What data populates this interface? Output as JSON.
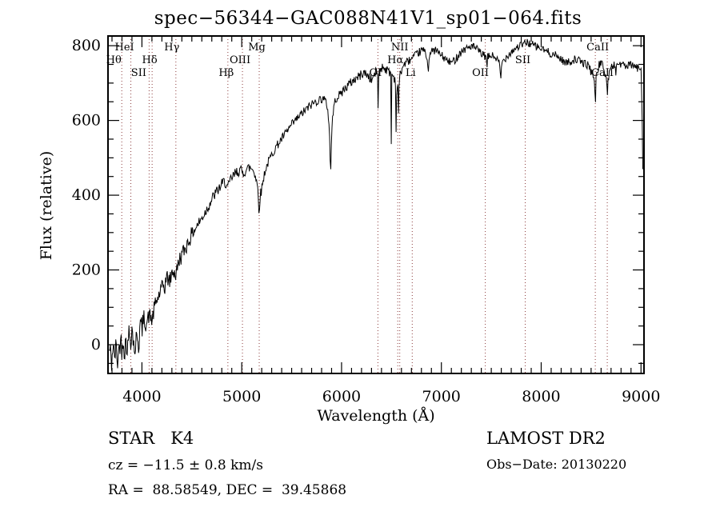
{
  "title": "spec−56344−GAC088N41V1_sp01−064.fits",
  "annotations": {
    "class_label": "STAR   K4",
    "cz": "cz = −11.5 ± 0.8 km/s",
    "radec": "RA =  88.58549, DEC =  39.45868",
    "survey": "LAMOST DR2",
    "obs_date": "Obs−Date: 20130220"
  },
  "chart_data": {
    "type": "line",
    "title": "spec−56344−GAC088N41V1_sp01−064.fits",
    "xlabel": "Wavelength (Å)",
    "ylabel": "Flux (relative)",
    "xlim": [
      3660,
      9030
    ],
    "ylim": [
      -77,
      826
    ],
    "xticks": [
      4000,
      5000,
      6000,
      7000,
      8000,
      9000
    ],
    "yticks": [
      0,
      200,
      400,
      600,
      800
    ],
    "x_minor_step": 100,
    "y_minor_step": 50,
    "grid": false,
    "legend": "none",
    "line_color": "#000000",
    "marker_line_color": "#8b3a3a",
    "spectral_lines": [
      {
        "label": "Hθ",
        "wavelength": 3798,
        "row": 2,
        "dx": -10
      },
      {
        "label": "HeI",
        "wavelength": 3889,
        "row": 1,
        "dx": -8
      },
      {
        "label": "SII",
        "wavelength": 4072,
        "row": 3,
        "dx": -13
      },
      {
        "label": "Hδ",
        "wavelength": 4102,
        "row": 2,
        "dx": -3
      },
      {
        "label": "Hγ",
        "wavelength": 4340,
        "row": 1,
        "dx": -5
      },
      {
        "label": "Hβ",
        "wavelength": 4861,
        "row": 3,
        "dx": -2
      },
      {
        "label": "OIII",
        "wavelength": 5007,
        "row": 2,
        "dx": -3
      },
      {
        "label": "Mg",
        "wavelength": 5175,
        "row": 1,
        "dx": -3
      },
      {
        "label": "OI",
        "wavelength": 6364,
        "row": 3,
        "dx": -3
      },
      {
        "label": "Hα",
        "wavelength": 6563,
        "row": 2,
        "dx": -3
      },
      {
        "label": "NII",
        "wavelength": 6583,
        "row": 1,
        "dx": 0
      },
      {
        "label": "Li",
        "wavelength": 6708,
        "row": 3,
        "dx": -2
      },
      {
        "label": "OII",
        "wavelength": 7440,
        "row": 3,
        "dx": -6
      },
      {
        "label": "SII",
        "wavelength": 7840,
        "row": 2,
        "dx": -3
      },
      {
        "label": "CaII",
        "wavelength": 8542,
        "row": 1,
        "dx": 3
      },
      {
        "label": "CaII",
        "wavelength": 8662,
        "row": 3,
        "dx": -6
      }
    ],
    "spectrum_range": [
      3672,
      9018
    ],
    "spectrum_step": 6,
    "spectrum_anchors": [
      [
        3664,
        -30
      ],
      [
        3680,
        -10
      ],
      [
        3696,
        -50
      ],
      [
        3710,
        0
      ],
      [
        3724,
        -35
      ],
      [
        3740,
        -5
      ],
      [
        3756,
        -45
      ],
      [
        3772,
        -10
      ],
      [
        3788,
        20
      ],
      [
        3800,
        -20
      ],
      [
        3812,
        25
      ],
      [
        3826,
        -25
      ],
      [
        3840,
        15
      ],
      [
        3856,
        -15
      ],
      [
        3872,
        40
      ],
      [
        3886,
        10
      ],
      [
        3900,
        45
      ],
      [
        3915,
        5
      ],
      [
        3934,
        -10
      ],
      [
        3950,
        35
      ],
      [
        3968,
        10
      ],
      [
        3984,
        55
      ],
      [
        4000,
        45
      ],
      [
        4025,
        70
      ],
      [
        4050,
        60
      ],
      [
        4072,
        80
      ],
      [
        4102,
        65
      ],
      [
        4130,
        105
      ],
      [
        4160,
        125
      ],
      [
        4190,
        145
      ],
      [
        4220,
        160
      ],
      [
        4250,
        180
      ],
      [
        4280,
        170
      ],
      [
        4310,
        200
      ],
      [
        4340,
        185
      ],
      [
        4370,
        225
      ],
      [
        4400,
        240
      ],
      [
        4440,
        262
      ],
      [
        4480,
        285
      ],
      [
        4520,
        305
      ],
      [
        4560,
        322
      ],
      [
        4600,
        338
      ],
      [
        4640,
        358
      ],
      [
        4680,
        378
      ],
      [
        4720,
        398
      ],
      [
        4760,
        413
      ],
      [
        4800,
        428
      ],
      [
        4830,
        438
      ],
      [
        4861,
        418
      ],
      [
        4890,
        442
      ],
      [
        4920,
        452
      ],
      [
        4950,
        462
      ],
      [
        4980,
        468
      ],
      [
        5010,
        458
      ],
      [
        5040,
        468
      ],
      [
        5080,
        474
      ],
      [
        5120,
        468
      ],
      [
        5150,
        438
      ],
      [
        5175,
        382
      ],
      [
        5200,
        418
      ],
      [
        5230,
        462
      ],
      [
        5265,
        488
      ],
      [
        5300,
        508
      ],
      [
        5340,
        528
      ],
      [
        5380,
        543
      ],
      [
        5420,
        558
      ],
      [
        5460,
        573
      ],
      [
        5500,
        588
      ],
      [
        5540,
        600
      ],
      [
        5580,
        612
      ],
      [
        5620,
        623
      ],
      [
        5660,
        633
      ],
      [
        5700,
        643
      ],
      [
        5740,
        650
      ],
      [
        5780,
        656
      ],
      [
        5820,
        660
      ],
      [
        5858,
        638
      ],
      [
        5893,
        535
      ],
      [
        5912,
        618
      ],
      [
        5940,
        658
      ],
      [
        5980,
        668
      ],
      [
        6020,
        682
      ],
      [
        6060,
        693
      ],
      [
        6100,
        703
      ],
      [
        6140,
        712
      ],
      [
        6180,
        719
      ],
      [
        6220,
        728
      ],
      [
        6260,
        722
      ],
      [
        6300,
        708
      ],
      [
        6340,
        728
      ],
      [
        6380,
        738
      ],
      [
        6420,
        744
      ],
      [
        6460,
        733
      ],
      [
        6500,
        727
      ],
      [
        6532,
        712
      ],
      [
        6563,
        688
      ],
      [
        6592,
        728
      ],
      [
        6620,
        748
      ],
      [
        6660,
        758
      ],
      [
        6700,
        764
      ],
      [
        6740,
        773
      ],
      [
        6780,
        783
      ],
      [
        6820,
        789
      ],
      [
        6860,
        768
      ],
      [
        6900,
        783
      ],
      [
        6940,
        789
      ],
      [
        6980,
        779
      ],
      [
        7020,
        769
      ],
      [
        7060,
        759
      ],
      [
        7100,
        754
      ],
      [
        7140,
        764
      ],
      [
        7180,
        779
      ],
      [
        7220,
        789
      ],
      [
        7260,
        794
      ],
      [
        7300,
        799
      ],
      [
        7340,
        794
      ],
      [
        7380,
        784
      ],
      [
        7420,
        774
      ],
      [
        7460,
        769
      ],
      [
        7500,
        774
      ],
      [
        7540,
        769
      ],
      [
        7580,
        754
      ],
      [
        7620,
        759
      ],
      [
        7660,
        774
      ],
      [
        7700,
        784
      ],
      [
        7740,
        793
      ],
      [
        7780,
        799
      ],
      [
        7820,
        804
      ],
      [
        7860,
        809
      ],
      [
        7900,
        804
      ],
      [
        7940,
        799
      ],
      [
        7980,
        794
      ],
      [
        8020,
        789
      ],
      [
        8060,
        784
      ],
      [
        8100,
        779
      ],
      [
        8140,
        774
      ],
      [
        8180,
        769
      ],
      [
        8220,
        759
      ],
      [
        8260,
        754
      ],
      [
        8300,
        759
      ],
      [
        8340,
        764
      ],
      [
        8380,
        759
      ],
      [
        8420,
        754
      ],
      [
        8460,
        749
      ],
      [
        8500,
        742
      ],
      [
        8542,
        698
      ],
      [
        8580,
        752
      ],
      [
        8620,
        748
      ],
      [
        8662,
        702
      ],
      [
        8700,
        744
      ],
      [
        8740,
        749
      ],
      [
        8780,
        753
      ],
      [
        8820,
        748
      ],
      [
        8860,
        744
      ],
      [
        8900,
        749
      ],
      [
        8940,
        744
      ],
      [
        8975,
        738
      ],
      [
        9000,
        742
      ],
      [
        9010,
        640
      ],
      [
        9018,
        480
      ]
    ],
    "absorption_spikes": [
      [
        3934,
        40,
        6
      ],
      [
        3968,
        35,
        6
      ],
      [
        4227,
        35,
        6
      ],
      [
        5172,
        25,
        12
      ],
      [
        5890,
        80,
        14
      ],
      [
        6368,
        160,
        6
      ],
      [
        6498,
        190,
        5
      ],
      [
        6548,
        260,
        5
      ],
      [
        6572,
        170,
        5
      ],
      [
        6867,
        40,
        12
      ],
      [
        7455,
        90,
        5
      ],
      [
        7594,
        45,
        16
      ],
      [
        8498,
        35,
        7
      ],
      [
        8542,
        65,
        7
      ],
      [
        8662,
        55,
        7
      ],
      [
        8750,
        60,
        5
      ]
    ],
    "noise": {
      "seed": 42,
      "segments": [
        [
          3660,
          4050,
          30
        ],
        [
          4050,
          4500,
          22
        ],
        [
          4500,
          5200,
          16
        ],
        [
          5200,
          6000,
          12
        ],
        [
          6000,
          6600,
          13
        ],
        [
          6600,
          9030,
          11
        ]
      ]
    }
  }
}
